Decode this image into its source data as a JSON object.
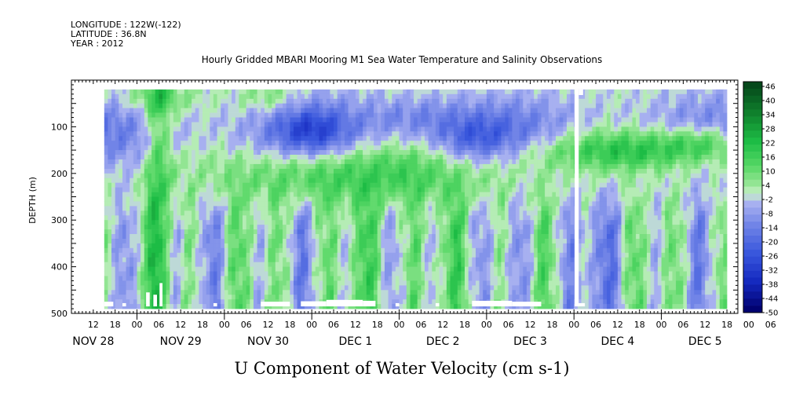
{
  "header": {
    "longitude": "LONGITUDE : 122W(-122)",
    "latitude": "LATITUDE : 36.8N",
    "year": "YEAR : 2012"
  },
  "chart_data": {
    "type": "heatmap",
    "title": "Hourly Gridded MBARI Mooring M1 Sea Water Temperature and Salinity Observations",
    "xlabel": "U Component of Water Velocity (cm s-1)",
    "ylabel": "DEPTH (m)",
    "ylim": [
      500,
      0
    ],
    "y_inverted": true,
    "y_ticks": [
      100,
      200,
      300,
      400,
      500
    ],
    "x_hour_ticks": [
      "12",
      "18",
      "00",
      "06",
      "12",
      "18",
      "00",
      "06",
      "12",
      "18",
      "00",
      "06",
      "12",
      "18",
      "00",
      "06",
      "12",
      "18",
      "00",
      "06",
      "12",
      "18",
      "00",
      "06",
      "12",
      "18",
      "00",
      "06",
      "12",
      "18",
      "00",
      "06"
    ],
    "x_day_labels": [
      "NOV 28",
      "NOV 29",
      "NOV 30",
      "DEC 1",
      "DEC 2",
      "DEC 3",
      "DEC 4",
      "DEC 5"
    ],
    "x_range_hours_from_nov28_00": [
      6,
      189
    ],
    "data_range_hours": [
      15,
      186
    ],
    "data_depth_range": [
      20,
      485
    ],
    "colorbar": {
      "labels": [
        "46",
        "40",
        "34",
        "28",
        "22",
        "16",
        "10",
        "4",
        "-2",
        "-8",
        "-14",
        "-20",
        "-26",
        "-32",
        "-38",
        "-44",
        "-50"
      ],
      "min": -50,
      "max": 48,
      "step": 3
    },
    "features": [
      {
        "description": "weak negative (blue) band near 60-150 m depth from Nov 28 to Dec 3",
        "sign": "negative"
      },
      {
        "description": "strongest negative (dark blue) near Dec 1 00 and Dec 3 00 around 100-150 m",
        "sign": "negative"
      },
      {
        "description": "positive (green) band 150-250 m from Nov 30 to Dec 2",
        "sign": "positive"
      },
      {
        "description": "strong positive (dark green) 100-180 m from Dec 3 12 to Dec 5 06",
        "sign": "positive"
      },
      {
        "description": "alternating vertical positive/negative streaks below 250 m",
        "sign": "mixed"
      }
    ],
    "colors": {
      "most_negative": "#000080",
      "negative": "#3c57d6",
      "weak_negative": "#9aa6ee",
      "weak_positive": "#8be39a",
      "positive": "#22c244",
      "most_positive": "#0a4d1c"
    }
  }
}
